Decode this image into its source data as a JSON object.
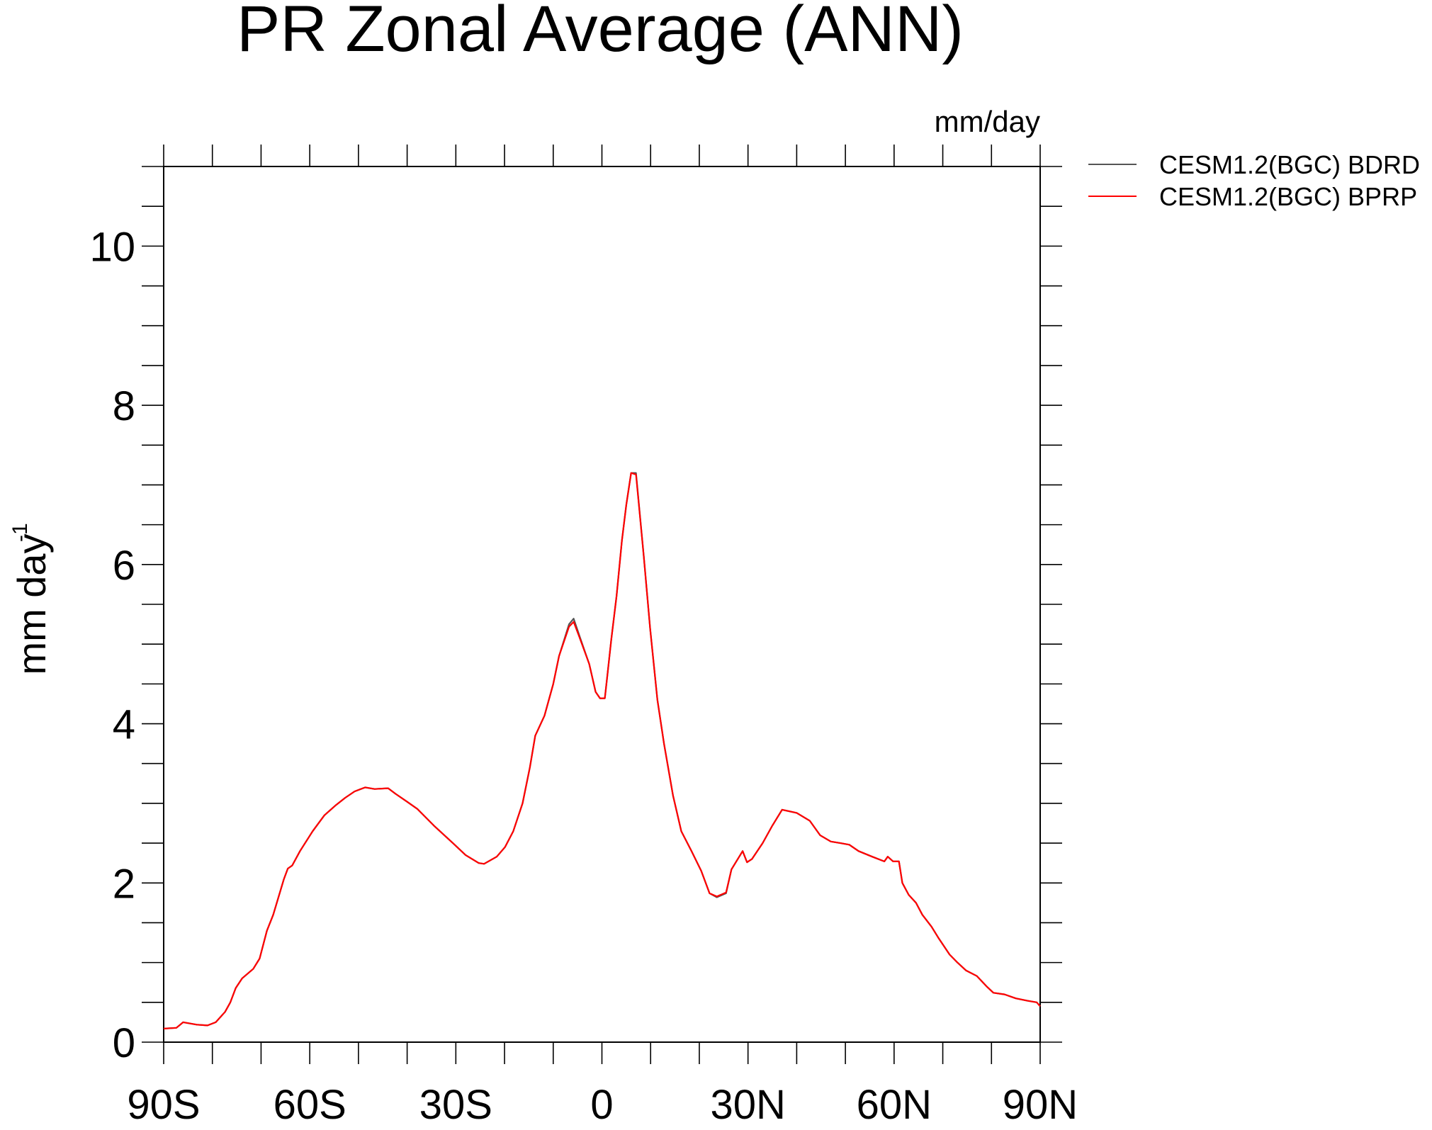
{
  "chart_data": {
    "type": "line",
    "title": "PR Zonal Average (ANN)",
    "units_label": "mm/day",
    "y_label": "mm day",
    "y_label_superscript": "-1",
    "xlim": [
      -90,
      90
    ],
    "xticks": [
      {
        "value": -90,
        "label": "90S"
      },
      {
        "value": -60,
        "label": "60S"
      },
      {
        "value": -30,
        "label": "30S"
      },
      0,
      {
        "value": 30,
        "label": "30N"
      },
      {
        "value": 60,
        "label": "60N"
      },
      {
        "value": 90,
        "label": "90N"
      }
    ],
    "ylim": [
      0,
      11
    ],
    "yticks": [
      0,
      2,
      4,
      6,
      8,
      10
    ],
    "legend": "outside-top-right",
    "x": [
      -90,
      -87.4,
      -86,
      -83.2,
      -81,
      -79.3,
      -77.4,
      -76.3,
      -75.2,
      -73.9,
      -71.6,
      -70.3,
      -68.8,
      -67.5,
      -65.3,
      -64.5,
      -63.6,
      -62,
      -59.4,
      -57,
      -54.6,
      -52.7,
      -50.8,
      -48.6,
      -46.7,
      -43.9,
      -42.4,
      -40,
      -37.9,
      -34.5,
      -30.6,
      -28,
      -25.3,
      -24.2,
      -21.6,
      -19.9,
      -18.2,
      -16.3,
      -14.8,
      -13.7,
      -11.8,
      -10,
      -8.8,
      -6.75,
      -5.8,
      -4.7,
      -2.6,
      -1.3,
      -0.4,
      0.6,
      1.1,
      1.9,
      3,
      4.1,
      5,
      6,
      7,
      8.6,
      9.9,
      11.4,
      12.75,
      14.6,
      16.3,
      18.4,
      20.4,
      22.1,
      23.6,
      25.5,
      26.6,
      28.9,
      29.8,
      30.8,
      33,
      35,
      37,
      40,
      42.7,
      44.8,
      47,
      49,
      50.8,
      52.7,
      55.5,
      58,
      58.7,
      59.8,
      61,
      61.7,
      63,
      64.5,
      65.8,
      67.7,
      69.2,
      71.4,
      73,
      74.8,
      77,
      79,
      80.4,
      82.7,
      85,
      87.4,
      89.3,
      90
    ],
    "series": [
      {
        "name": "CESM1.2(BGC) BDRD",
        "color": "#555555",
        "values": [
          0.17,
          0.18,
          0.25,
          0.22,
          0.21,
          0.25,
          0.38,
          0.5,
          0.68,
          0.8,
          0.92,
          1.05,
          1.4,
          1.6,
          2.05,
          2.18,
          2.22,
          2.4,
          2.65,
          2.85,
          2.98,
          3.07,
          3.15,
          3.2,
          3.18,
          3.19,
          3.12,
          3.02,
          2.93,
          2.72,
          2.5,
          2.35,
          2.25,
          2.24,
          2.33,
          2.45,
          2.65,
          3.0,
          3.45,
          3.85,
          4.1,
          4.5,
          4.85,
          5.25,
          5.32,
          5.12,
          4.75,
          4.4,
          4.32,
          4.32,
          4.6,
          5.05,
          5.6,
          6.3,
          6.75,
          7.15,
          7.15,
          6.1,
          5.2,
          4.3,
          3.75,
          3.1,
          2.65,
          2.4,
          2.15,
          1.87,
          1.82,
          1.87,
          2.17,
          2.4,
          2.26,
          2.3,
          2.5,
          2.72,
          2.92,
          2.88,
          2.78,
          2.6,
          2.52,
          2.5,
          2.48,
          2.4,
          2.33,
          2.27,
          2.33,
          2.27,
          2.27,
          2.0,
          1.85,
          1.75,
          1.6,
          1.45,
          1.3,
          1.1,
          1.0,
          0.9,
          0.83,
          0.7,
          0.62,
          0.6,
          0.55,
          0.52,
          0.5,
          0.45
        ]
      },
      {
        "name": "CESM1.2(BGC) BPRP",
        "color": "#ff0000",
        "values": [
          0.17,
          0.18,
          0.25,
          0.22,
          0.21,
          0.25,
          0.38,
          0.5,
          0.68,
          0.8,
          0.92,
          1.05,
          1.4,
          1.6,
          2.05,
          2.18,
          2.22,
          2.4,
          2.65,
          2.85,
          2.98,
          3.07,
          3.15,
          3.2,
          3.18,
          3.19,
          3.12,
          3.02,
          2.93,
          2.72,
          2.5,
          2.35,
          2.25,
          2.24,
          2.33,
          2.45,
          2.65,
          3.0,
          3.45,
          3.85,
          4.1,
          4.5,
          4.85,
          5.22,
          5.28,
          5.1,
          4.75,
          4.4,
          4.32,
          4.32,
          4.6,
          5.05,
          5.6,
          6.3,
          6.75,
          7.15,
          7.13,
          6.1,
          5.2,
          4.3,
          3.75,
          3.1,
          2.65,
          2.4,
          2.15,
          1.87,
          1.83,
          1.88,
          2.17,
          2.4,
          2.26,
          2.3,
          2.5,
          2.72,
          2.92,
          2.88,
          2.78,
          2.6,
          2.52,
          2.5,
          2.48,
          2.4,
          2.33,
          2.27,
          2.33,
          2.27,
          2.27,
          2.0,
          1.85,
          1.75,
          1.6,
          1.45,
          1.3,
          1.1,
          1.0,
          0.9,
          0.83,
          0.7,
          0.62,
          0.6,
          0.55,
          0.52,
          0.5,
          0.45
        ]
      }
    ]
  }
}
